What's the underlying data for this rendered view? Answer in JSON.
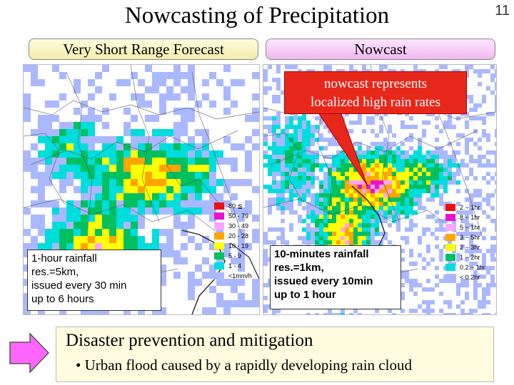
{
  "header": {
    "title": "Nowcasting of Precipitation",
    "page_number": "11"
  },
  "panels": {
    "left": {
      "label": "Very Short Range Forecast",
      "info_lines": [
        "1-hour rainfall",
        "res.=5km,",
        "issued every 30 min",
        "up to 6 hours"
      ]
    },
    "right": {
      "label": "Nowcast",
      "callout_lines": [
        "nowcast represents",
        "localized high rain rates"
      ],
      "info_lines": [
        "10-minutes rainfall",
        "res.=1km,",
        "issued every 10min",
        "up to 1 hour"
      ]
    }
  },
  "legend_left": [
    {
      "label": "80 ≦",
      "color": "#ee1111"
    },
    {
      "label": "50 - 79",
      "color": "#ee11cc"
    },
    {
      "label": "30 - 49",
      "color": "#ffa4ff"
    },
    {
      "label": "20 - 28",
      "color": "#ffa500"
    },
    {
      "label": "10 - 19",
      "color": "#ffff00"
    },
    {
      "label": "5 - 9",
      "color": "#00c060"
    },
    {
      "label": "1 - 4",
      "color": "#00dddd"
    },
    {
      "label": "<1mm/h",
      "color": "#aab8ff"
    }
  ],
  "legend_right": [
    {
      "label": "2 ~ 1hr",
      "color": "#ee1111"
    },
    {
      "label": "8 ~ 1hr",
      "color": "#ee11cc"
    },
    {
      "label": "5 ~ 1hr",
      "color": "#ffa4ff"
    },
    {
      "label": "3 ~ 5hr",
      "color": "#ffa500"
    },
    {
      "label": "2 ~ 3hr",
      "color": "#ffff00"
    },
    {
      "label": "1 ~ 2hr",
      "color": "#00c060"
    },
    {
      "label": "0.2 ~ 1hr",
      "color": "#00dddd"
    },
    {
      "label": "< 0.2hr",
      "color": "#aab8ff"
    }
  ],
  "bottom": {
    "title": "Disaster prevention and mitigation",
    "bullet": "• Urban flood caused by a rapidly developing rain cloud"
  },
  "colors": {
    "arrow_fill": "#ff66ff",
    "arrow_stroke": "#555555"
  }
}
